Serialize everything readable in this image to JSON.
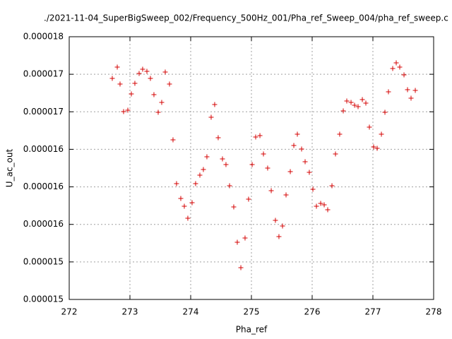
{
  "chart_data": {
    "type": "scatter",
    "title": "./2021-11-04_SuperBigSweep_002/Frequency_500Hz_001/Pha_ref_Sweep_004/pha_ref_sweep.c",
    "x_label": "Pha_ref",
    "y_label": "U_ac_out",
    "xlim": [
      272,
      278
    ],
    "xticks": [
      272,
      273,
      274,
      275,
      276,
      277,
      278
    ],
    "ylim": [
      1.45e-05,
      1.8e-05
    ],
    "yticks": [
      {
        "value": 1.45e-05,
        "label": "0.000015"
      },
      {
        "value": 1.5e-05,
        "label": "0.000015"
      },
      {
        "value": 1.55e-05,
        "label": "0.000016"
      },
      {
        "value": 1.6e-05,
        "label": "0.000016"
      },
      {
        "value": 1.65e-05,
        "label": "0.000016"
      },
      {
        "value": 1.7e-05,
        "label": "0.000017"
      },
      {
        "value": 1.75e-05,
        "label": "0.000017"
      },
      {
        "value": 1.8e-05,
        "label": "0.000018"
      }
    ],
    "grid": true,
    "color": "#d40000",
    "x": [
      272.709,
      272.791,
      272.837,
      272.895,
      272.965,
      273.023,
      273.081,
      273.151,
      273.209,
      273.279,
      273.337,
      273.395,
      273.465,
      273.523,
      273.581,
      273.651,
      273.709,
      273.767,
      273.837,
      273.895,
      273.953,
      274.023,
      274.081,
      274.151,
      274.209,
      274.267,
      274.337,
      274.395,
      274.453,
      274.523,
      274.581,
      274.64,
      274.709,
      274.767,
      274.826,
      274.895,
      274.953,
      275.012,
      275.07,
      275.14,
      275.198,
      275.267,
      275.326,
      275.395,
      275.453,
      275.512,
      275.57,
      275.64,
      275.698,
      275.756,
      275.826,
      275.884,
      275.953,
      276.012,
      276.07,
      276.14,
      276.198,
      276.256,
      276.326,
      276.384,
      276.453,
      276.512,
      276.57,
      276.64,
      276.698,
      276.756,
      276.826,
      276.884,
      276.942,
      277.012,
      277.07,
      277.14,
      277.198,
      277.256,
      277.326,
      277.384,
      277.442,
      277.512,
      277.57,
      277.628,
      277.698
    ],
    "values": [
      1.7445e-05,
      1.7595e-05,
      1.737e-05,
      1.7003e-05,
      1.7021e-05,
      1.7238e-05,
      1.7379e-05,
      1.7511e-05,
      1.7567e-05,
      1.7539e-05,
      1.7445e-05,
      1.7228e-05,
      1.6993e-05,
      1.7125e-05,
      1.753e-05,
      1.737e-05,
      1.6626e-05,
      1.6043e-05,
      1.5845e-05,
      1.5742e-05,
      1.5582e-05,
      1.5789e-05,
      1.6043e-05,
      1.6156e-05,
      1.6231e-05,
      1.64e-05,
      1.6927e-05,
      1.7097e-05,
      1.6655e-05,
      1.6372e-05,
      1.6297e-05,
      1.6015e-05,
      1.5732e-05,
      1.5262e-05,
      1.4923e-05,
      1.5318e-05,
      1.5836e-05,
      1.6297e-05,
      1.6664e-05,
      1.6683e-05,
      1.6438e-05,
      1.625e-05,
      1.5949e-05,
      1.5554e-05,
      1.5337e-05,
      1.5478e-05,
      1.5892e-05,
      1.6203e-05,
      1.6551e-05,
      1.6702e-05,
      1.6504e-05,
      1.6335e-05,
      1.6193e-05,
      1.5968e-05,
      1.5742e-05,
      1.5779e-05,
      1.5761e-05,
      1.5695e-05,
      1.6015e-05,
      1.6438e-05,
      1.6702e-05,
      1.7012e-05,
      1.7144e-05,
      1.7125e-05,
      1.7087e-05,
      1.7069e-05,
      1.7163e-05,
      1.7116e-05,
      1.6796e-05,
      1.6532e-05,
      1.6513e-05,
      1.6702e-05,
      1.6993e-05,
      1.7266e-05,
      1.7577e-05,
      1.7652e-05,
      1.7595e-05,
      1.7492e-05,
      1.7294e-05,
      1.7181e-05,
      1.7285e-05
    ]
  }
}
